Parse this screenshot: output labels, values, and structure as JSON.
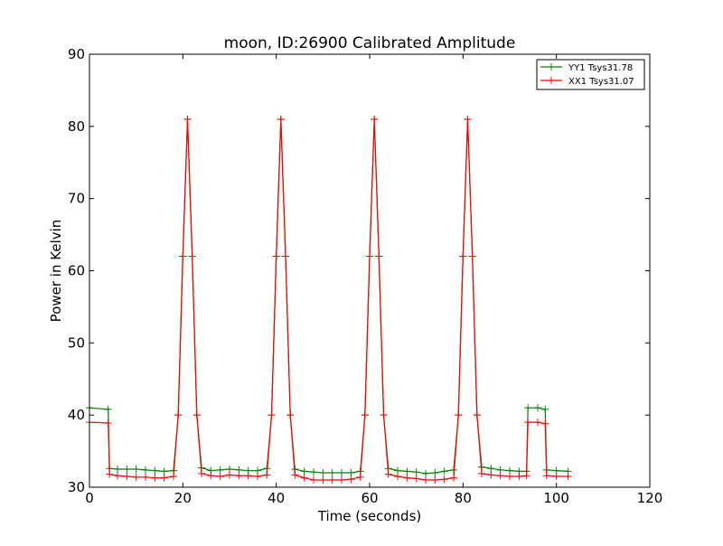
{
  "chart_data": {
    "type": "line",
    "title": "moon, ID:26900 Calibrated Amplitude",
    "xlabel": "Time (seconds)",
    "ylabel": "Power in Kelvin",
    "xlim": [
      0,
      120
    ],
    "ylim": [
      30,
      90
    ],
    "x_ticks": [
      0,
      20,
      40,
      60,
      80,
      100,
      120
    ],
    "y_ticks": [
      30,
      40,
      50,
      60,
      70,
      80,
      90
    ],
    "grid": false,
    "legend": "top-right",
    "markers": "plus",
    "series": [
      {
        "name": "YY1 Tsys31.78",
        "color": "#008000",
        "x": [
          0,
          4,
          4.3,
          6,
          8,
          10,
          12,
          14,
          16,
          18,
          19,
          20,
          21,
          22,
          23,
          24,
          26,
          28,
          30,
          32,
          34,
          36,
          38,
          39,
          40,
          41,
          42,
          43,
          44,
          46,
          48,
          50,
          52,
          54,
          56,
          58,
          59,
          60,
          61,
          62,
          63,
          64,
          66,
          68,
          70,
          72,
          74,
          76,
          78,
          79,
          80,
          81,
          82,
          83,
          84,
          86,
          88,
          90,
          92,
          93.6,
          93.9,
          96,
          97.6,
          97.9,
          100,
          102.5
        ],
        "y": [
          41,
          40.8,
          32.6,
          32.5,
          32.5,
          32.5,
          32.4,
          32.3,
          32.2,
          32.3,
          40,
          62,
          81,
          62,
          40,
          32.7,
          32.3,
          32.4,
          32.5,
          32.4,
          32.3,
          32.3,
          32.6,
          40,
          62,
          81,
          62,
          40,
          32.5,
          32.2,
          32.1,
          32,
          32,
          32,
          32,
          32.2,
          40,
          62,
          81,
          62,
          40,
          32.6,
          32.3,
          32.2,
          32.1,
          31.9,
          32,
          32.2,
          32.4,
          40,
          62,
          81,
          62,
          40,
          32.8,
          32.6,
          32.4,
          32.3,
          32.2,
          32.2,
          41,
          41,
          40.8,
          32.4,
          32.3,
          32.2
        ]
      },
      {
        "name": "XX1 Tsys31.07",
        "color": "#ff0000",
        "x": [
          0,
          4,
          4.3,
          6,
          8,
          10,
          12,
          14,
          16,
          18,
          19,
          20,
          21,
          22,
          23,
          24,
          26,
          28,
          30,
          32,
          34,
          36,
          38,
          39,
          40,
          41,
          42,
          43,
          44,
          46,
          48,
          50,
          52,
          54,
          56,
          58,
          59,
          60,
          61,
          62,
          63,
          64,
          66,
          68,
          70,
          72,
          74,
          76,
          78,
          79,
          80,
          81,
          82,
          83,
          84,
          86,
          88,
          90,
          92,
          93.6,
          93.9,
          96,
          97.6,
          97.9,
          100,
          102.5
        ],
        "y": [
          39,
          38.9,
          31.8,
          31.6,
          31.5,
          31.4,
          31.4,
          31.3,
          31.3,
          31.5,
          40,
          62,
          81,
          62,
          40,
          31.9,
          31.6,
          31.5,
          31.7,
          31.6,
          31.6,
          31.5,
          31.7,
          40,
          62,
          81,
          62,
          40,
          31.7,
          31.3,
          31,
          31,
          31,
          31,
          31.1,
          31.4,
          40,
          62,
          81,
          62,
          40,
          31.8,
          31.5,
          31.3,
          31.2,
          31,
          31,
          31.1,
          31.3,
          40,
          62,
          81,
          62,
          40,
          31.9,
          31.7,
          31.6,
          31.5,
          31.5,
          31.6,
          39,
          39,
          38.8,
          31.6,
          31.5,
          31.5
        ]
      }
    ]
  }
}
